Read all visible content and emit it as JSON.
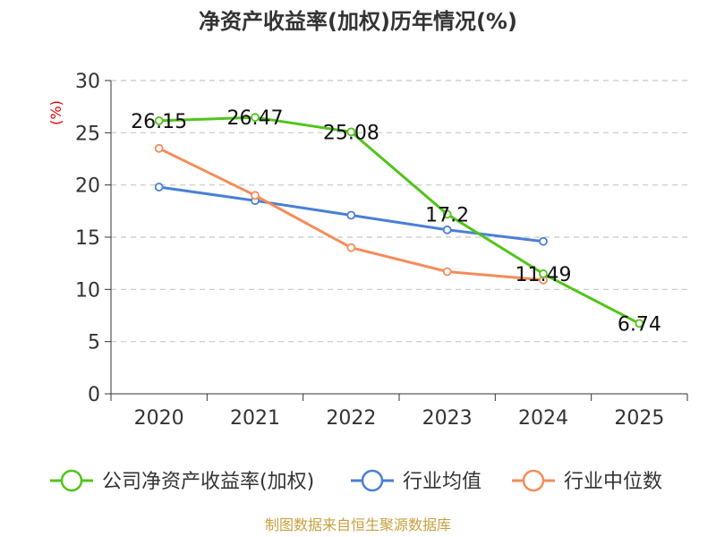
{
  "chart_data": {
    "type": "line",
    "title": "净资产收益率(加权)历年情况(%)",
    "ylabel": "(%)",
    "xlabel": "",
    "categories": [
      "2020",
      "2021",
      "2022",
      "2023",
      "2024",
      "2025"
    ],
    "ylim": [
      0,
      30
    ],
    "yticks": [
      0,
      5,
      10,
      15,
      20,
      25,
      30
    ],
    "grid": true,
    "legend_position": "bottom",
    "series": [
      {
        "name": "公司净资产收益率(加权)",
        "color": "#52c41a",
        "values": [
          26.15,
          26.47,
          25.08,
          17.2,
          11.49,
          6.74
        ],
        "labels": [
          "26.15",
          "26.47",
          "25.08",
          "17.2",
          "11.49",
          "6.74"
        ]
      },
      {
        "name": "行业均值",
        "color": "#4a7fd6",
        "values": [
          19.8,
          18.5,
          17.1,
          15.7,
          14.6,
          null
        ]
      },
      {
        "name": "行业中位数",
        "color": "#f58c5a",
        "values": [
          23.5,
          19.0,
          14.0,
          11.7,
          10.9,
          null
        ]
      }
    ],
    "source": "制图数据来自恒生聚源数据库"
  }
}
